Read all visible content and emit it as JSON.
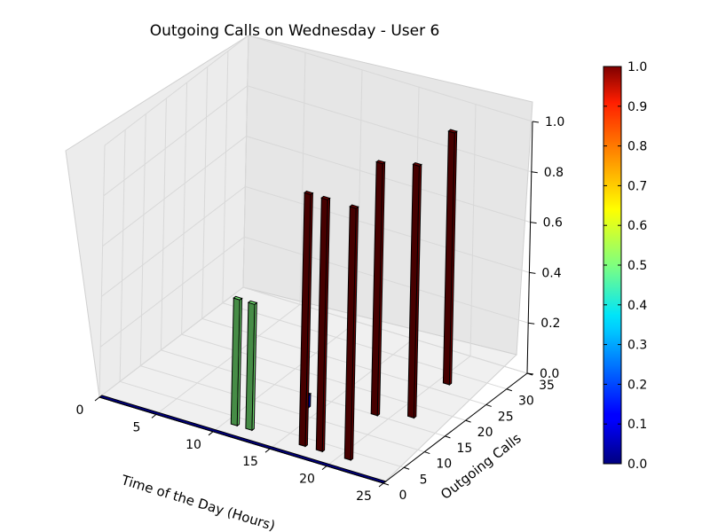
{
  "chart_data": {
    "type": "bar3d",
    "title": "Outgoing Calls on Wednesday - User 6",
    "xlabel": "Time of the Day (Hours)",
    "ylabel": "Outgoing Calls",
    "xlim": [
      0,
      25
    ],
    "ylim": [
      0,
      35
    ],
    "zlim": [
      0,
      1
    ],
    "xticks": [
      "0",
      "5",
      "10",
      "15",
      "20",
      "25"
    ],
    "yticks": [
      "0",
      "5",
      "10",
      "15",
      "20",
      "25",
      "30",
      "35"
    ],
    "zticks": [
      "0.0",
      "0.2",
      "0.4",
      "0.6",
      "0.8",
      "1.0"
    ],
    "colorbar": {
      "min": 0,
      "max": 1,
      "ticks": [
        "0.0",
        "0.1",
        "0.2",
        "0.3",
        "0.4",
        "0.5",
        "0.6",
        "0.7",
        "0.8",
        "0.9",
        "1.0"
      ]
    },
    "grid": true,
    "bars": [
      {
        "x": 10.5,
        "y": 3,
        "z": 0.5
      },
      {
        "x": 11.8,
        "y": 3,
        "z": 0.5
      },
      {
        "x": 13.5,
        "y": 12,
        "z": 0.05
      },
      {
        "x": 16.5,
        "y": 3,
        "z": 1.0
      },
      {
        "x": 18.0,
        "y": 3,
        "z": 1.0
      },
      {
        "x": 18.5,
        "y": 15,
        "z": 1.0
      },
      {
        "x": 20.5,
        "y": 3,
        "z": 1.0
      },
      {
        "x": 20.5,
        "y": 27,
        "z": 1.0
      },
      {
        "x": 21.0,
        "y": 17,
        "z": 1.0
      }
    ]
  }
}
